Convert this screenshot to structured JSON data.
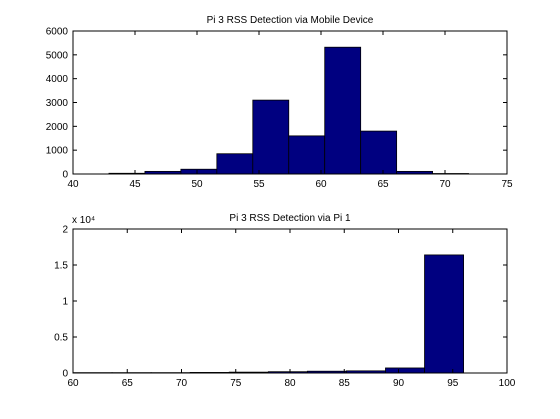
{
  "chart_data": [
    {
      "type": "bar",
      "title": "Pi 3 RSS Detection via Mobile Device",
      "xlabel": "",
      "ylabel": "",
      "xlim": [
        40,
        75
      ],
      "ylim": [
        0,
        6000
      ],
      "xticks": [
        40,
        45,
        50,
        55,
        60,
        65,
        70,
        75
      ],
      "yticks": [
        0,
        1000,
        2000,
        3000,
        4000,
        5000,
        6000
      ],
      "y_exponent": "",
      "bar_color": "#000080",
      "bins": [
        {
          "x0": 42.9,
          "x1": 45.8,
          "value": 30
        },
        {
          "x0": 45.8,
          "x1": 48.7,
          "value": 110
        },
        {
          "x0": 48.7,
          "x1": 51.6,
          "value": 200
        },
        {
          "x0": 51.6,
          "x1": 54.5,
          "value": 850
        },
        {
          "x0": 54.5,
          "x1": 57.4,
          "value": 3100
        },
        {
          "x0": 57.4,
          "x1": 60.3,
          "value": 1600
        },
        {
          "x0": 60.3,
          "x1": 63.2,
          "value": 5320
        },
        {
          "x0": 63.2,
          "x1": 66.1,
          "value": 1800
        },
        {
          "x0": 66.1,
          "x1": 69.0,
          "value": 110
        },
        {
          "x0": 69.0,
          "x1": 71.9,
          "value": 20
        }
      ]
    },
    {
      "type": "bar",
      "title": "Pi 3 RSS Detection via Pi 1",
      "xlabel": "",
      "ylabel": "",
      "xlim": [
        60,
        100
      ],
      "ylim": [
        0,
        2
      ],
      "xticks": [
        60,
        65,
        70,
        75,
        80,
        85,
        90,
        95,
        100
      ],
      "yticks": [
        0,
        0.5,
        1,
        1.5,
        2
      ],
      "y_exponent": "x 10⁴",
      "bar_color": "#000080",
      "bins": [
        {
          "x0": 60,
          "x1": 63.6,
          "value": 0.005
        },
        {
          "x0": 63.6,
          "x1": 67.2,
          "value": 0.005
        },
        {
          "x0": 67.2,
          "x1": 70.8,
          "value": 0.005
        },
        {
          "x0": 70.8,
          "x1": 74.4,
          "value": 0.008
        },
        {
          "x0": 74.4,
          "x1": 78.0,
          "value": 0.012
        },
        {
          "x0": 78.0,
          "x1": 81.6,
          "value": 0.018
        },
        {
          "x0": 81.6,
          "x1": 85.2,
          "value": 0.025
        },
        {
          "x0": 85.2,
          "x1": 88.8,
          "value": 0.03
        },
        {
          "x0": 88.8,
          "x1": 92.4,
          "value": 0.07
        },
        {
          "x0": 92.4,
          "x1": 96.0,
          "value": 1.64
        }
      ]
    }
  ]
}
